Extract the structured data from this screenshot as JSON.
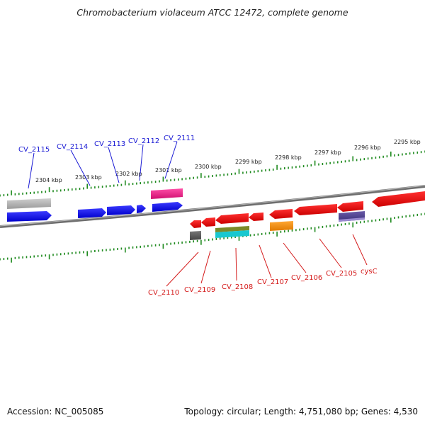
{
  "title": "Chromobacterium violaceum ATCC 12472, complete genome",
  "footer": {
    "accession": "Accession: NC_005085",
    "summary": "Topology: circular; Length: 4,751,080 bp; Genes: 4,530"
  },
  "colors": {
    "forward_cds": "#0a0ae6",
    "reverse_cds": "#e60a0a",
    "tick": "#1f8a1f",
    "backbone": "#808080"
  },
  "tick_labels": [
    "2304 kbp",
    "2303 kbp",
    "2302 kbp",
    "2301 kbp",
    "2300 kbp",
    "2299 kbp",
    "2298 kbp",
    "2297 kbp",
    "2296 kbp",
    "2295 kbp"
  ],
  "gene_labels_top": [
    "CV_2115",
    "CV_2114",
    "CV_2113",
    "CV_2112",
    "CV_2111"
  ],
  "gene_labels_bottom": [
    "CV_2110",
    "CV_2109",
    "CV_2108",
    "CV_2107",
    "CV_2106",
    "CV_2105",
    "cysC"
  ]
}
